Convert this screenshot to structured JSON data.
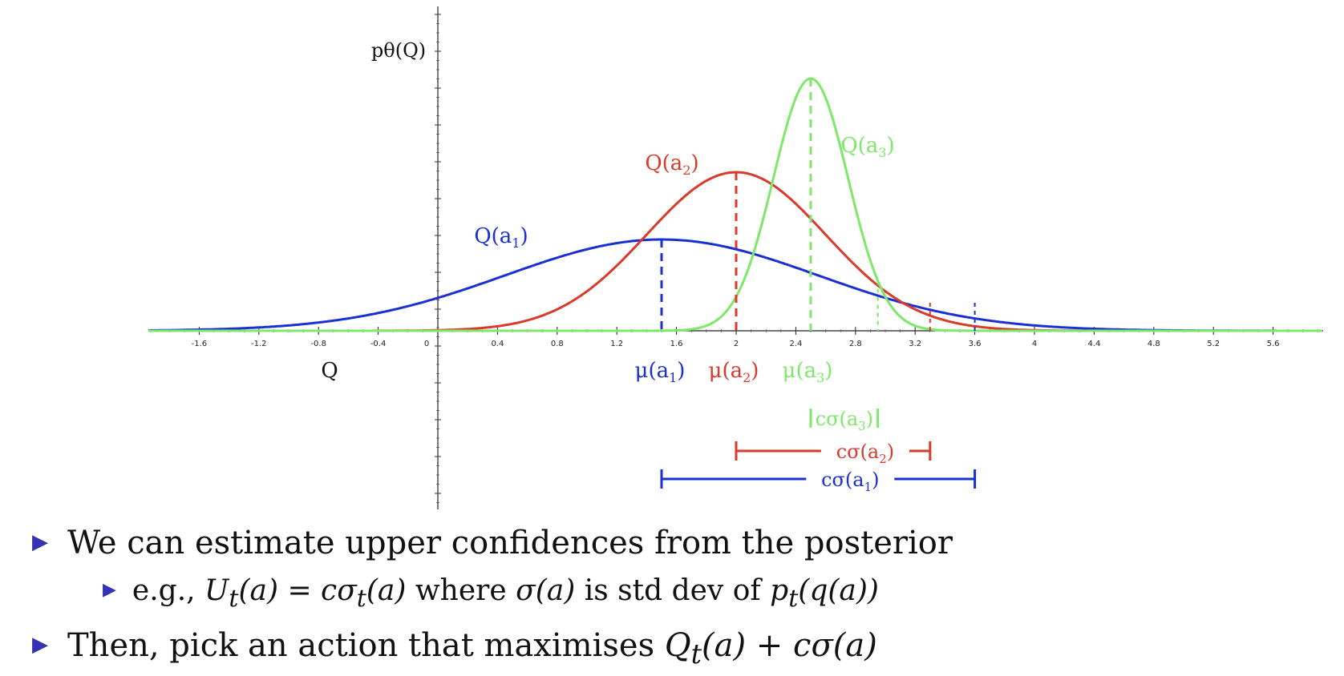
{
  "chart_data": {
    "type": "line",
    "ylabel": "pθ(Q)",
    "xlabel": "Q",
    "xlim": [
      -1.95,
      5.95
    ],
    "x_ticks": [
      -1.6,
      -1.2,
      -0.8,
      -0.4,
      0,
      0.4,
      0.8,
      1.2,
      1.6,
      2,
      2.4,
      2.8,
      3.2,
      3.6,
      4,
      4.4,
      4.8,
      5.2,
      5.6
    ],
    "series": [
      {
        "name": "Q(a1)",
        "name_base": "Q(a",
        "name_sub": "1",
        "name_close": ")",
        "color": "#1a2fd6",
        "mean": 1.5,
        "std": 1.05,
        "peak": 0.38,
        "ucb_x": 3.6,
        "mu_label": "μ(a",
        "sigma_label": "cσ(a"
      },
      {
        "name": "Q(a2)",
        "name_base": "Q(a",
        "name_sub": "2",
        "name_close": ")",
        "color": "#d93a2b",
        "mean": 2.0,
        "std": 0.6,
        "peak": 0.66,
        "ucb_x": 3.3,
        "mu_label": "μ(a",
        "sigma_label": "cσ(a"
      },
      {
        "name": "Q(a3)",
        "name_base": "Q(a",
        "name_sub": "3",
        "name_close": ")",
        "color": "#7de86a",
        "mean": 2.5,
        "std": 0.25,
        "peak": 1.05,
        "ucb_x": 2.95,
        "mu_label": "μ(a",
        "sigma_label": "cσ(a"
      }
    ]
  },
  "bullets": {
    "line1": "We can estimate upper confidences from the posterior",
    "line2_prefix": "e.g., ",
    "line2_U": "U",
    "line2_t": "t",
    "line2_a1": "(a) = cσ",
    "line2_t2": "t",
    "line2_a2": "(a)",
    "line2_mid": " where ",
    "line2_sigma": "σ(a)",
    "line2_mid2": " is std dev of ",
    "line2_p": "p",
    "line2_t3": "t",
    "line2_tail": "(q(a))",
    "line3_prefix": "Then, pick an action that maximises ",
    "line3_Q": "Q",
    "line3_t": "t",
    "line3_tail": "(a) + cσ(a)"
  }
}
